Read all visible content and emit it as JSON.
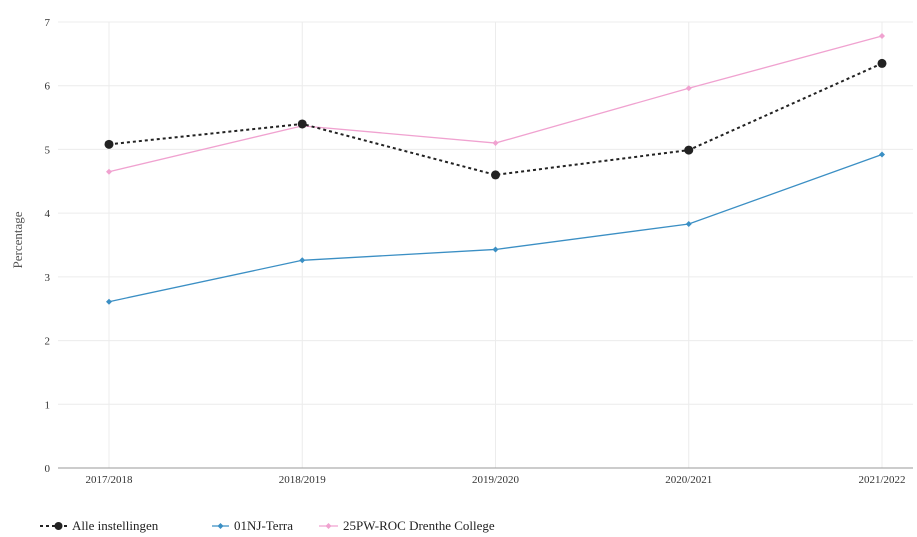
{
  "chart_data": {
    "type": "line",
    "title": "",
    "xlabel": "",
    "ylabel": "Percentage",
    "categories": [
      "2017/2018",
      "2018/2019",
      "2019/2020",
      "2020/2021",
      "2021/2022"
    ],
    "ylim": [
      0,
      7
    ],
    "yticks": [
      "0",
      "1",
      "2",
      "3",
      "4",
      "5",
      "6",
      "7"
    ],
    "grid": true,
    "legend_position": "bottom-left",
    "series": [
      {
        "name": "Alle instellingen",
        "values": [
          5.08,
          5.4,
          4.6,
          4.99,
          6.35
        ],
        "color": "#222222",
        "style": "dotted",
        "marker": "circle"
      },
      {
        "name": "01NJ-Terra",
        "values": [
          2.61,
          3.26,
          3.43,
          3.83,
          4.92
        ],
        "color": "#3b8fc4",
        "style": "solid",
        "marker": "diamond"
      },
      {
        "name": "25PW-ROC Drenthe College",
        "values": [
          4.65,
          5.37,
          5.1,
          5.96,
          6.78
        ],
        "color": "#f0a2d0",
        "style": "solid",
        "marker": "diamond"
      }
    ]
  }
}
